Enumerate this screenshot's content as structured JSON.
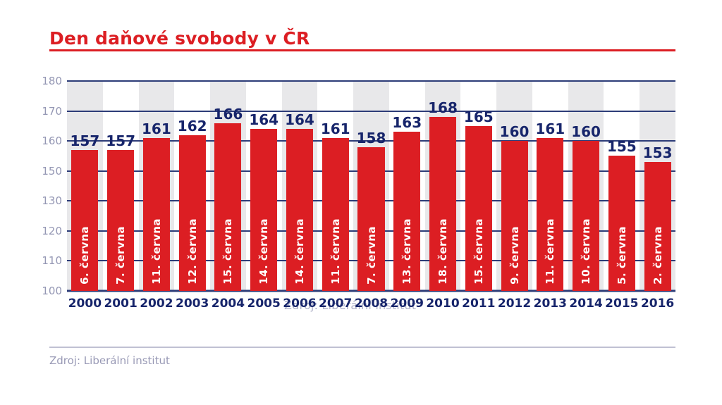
{
  "title": "Den daňové svobody v ČR",
  "source": {
    "caption": "Zdroj: Liberální institut",
    "watermark": "Zdroj: Liberální institut"
  },
  "colors": {
    "red": "#dc1e23",
    "navy_text": "#17256b",
    "grid_navy": "#2d3c78",
    "y_tick_gray": "#9497b4",
    "band_gray": "#e8e8ea",
    "band_white": "#ffffff",
    "caption_gray": "#9899b5",
    "watermark_gray": "#b0b2c8",
    "rule_gray": "#c0c1d3",
    "bar_label_white": "#ffffff"
  },
  "chart_data": {
    "type": "bar",
    "title": "Den daňové svobody v ČR",
    "categories": [
      "2000",
      "2001",
      "2002",
      "2003",
      "2004",
      "2005",
      "2006",
      "2007",
      "2008",
      "2009",
      "2010",
      "2011",
      "2012",
      "2013",
      "2014",
      "2015",
      "2016"
    ],
    "values": [
      157,
      157,
      161,
      162,
      166,
      164,
      164,
      161,
      158,
      163,
      168,
      165,
      160,
      161,
      160,
      155,
      153
    ],
    "bar_labels": [
      "6. června",
      "7. června",
      "11. června",
      "12. června",
      "15. června",
      "14. června",
      "14. června",
      "11. června",
      "7. června",
      "13. června",
      "18. června",
      "15. června",
      "9. června",
      "11. června",
      "10. června",
      "5. června",
      "2. června"
    ],
    "y_ticks": [
      180,
      170,
      160,
      150,
      130,
      120,
      110,
      100
    ],
    "ylim": [
      100,
      180
    ],
    "xlabel": "",
    "ylabel": "",
    "grid": "horizontal",
    "legend": "none",
    "bar_color": "#dc1e23",
    "background_stripes": "alternating gray/white column bands"
  }
}
